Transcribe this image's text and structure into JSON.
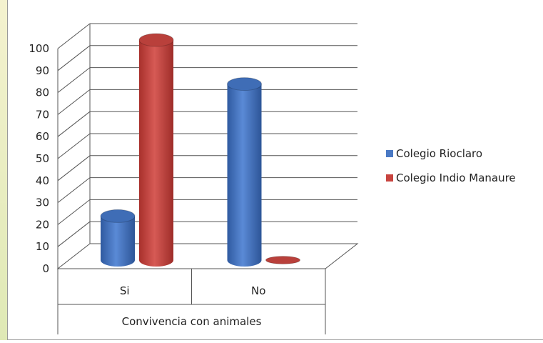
{
  "chart_data": {
    "type": "bar",
    "categories": [
      "Si",
      "No"
    ],
    "series": [
      {
        "name": "Colegio Rioclaro",
        "values": [
          20,
          80
        ]
      },
      {
        "name": "Colegio Indio Manaure",
        "values": [
          100,
          0
        ]
      }
    ],
    "xlabel": "Convivencia con animales",
    "ylabel": "",
    "ylim": [
      0,
      100
    ],
    "yticks": [
      0,
      10,
      20,
      30,
      40,
      50,
      60,
      70,
      80,
      90,
      100
    ],
    "grid": true,
    "legend": "right",
    "colors": {
      "Colegio Rioclaro": "#4a79c4",
      "Colegio Indio Manaure": "#c8443f"
    }
  }
}
